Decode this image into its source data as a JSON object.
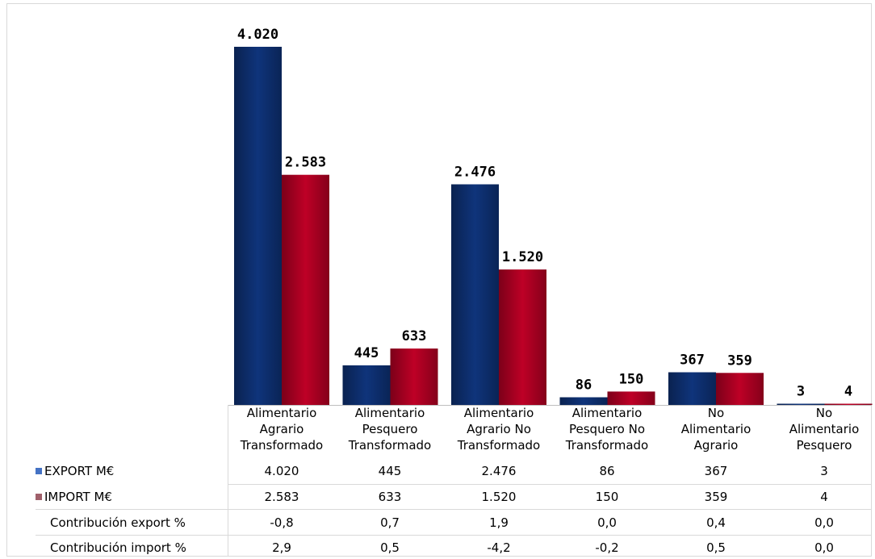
{
  "chart_data": {
    "type": "bar",
    "categories": [
      "Alimentario\nAgrario\nTransformado",
      "Alimentario\nPesquero\nTransformado",
      "Alimentario\nAgrario No\nTransformado",
      "Alimentario\nPesquero No\nTransformado",
      "No\nAlimentario\nAgrario",
      "No\nAlimentario\nPesquero"
    ],
    "series": [
      {
        "name": "EXPORT M€",
        "color": "#0d2d6b",
        "values": [
          4020,
          445,
          2476,
          86,
          367,
          3
        ],
        "labels": [
          "4.020",
          "445",
          "2.476",
          "86",
          "367",
          "3"
        ]
      },
      {
        "name": "IMPORT M€",
        "color": "#a50021",
        "values": [
          2583,
          633,
          1520,
          150,
          359,
          4
        ],
        "labels": [
          "2.583",
          "633",
          "1.520",
          "150",
          "359",
          "4"
        ]
      }
    ],
    "ylim": [
      0,
      4020
    ],
    "grid": false,
    "legend": "data-table",
    "table_rows": [
      {
        "label": "Contribución export %",
        "values": [
          "-0,8",
          "0,7",
          "1,9",
          "0,0",
          "0,4",
          "0,0"
        ]
      },
      {
        "label": "Contribución import %",
        "values": [
          "2,9",
          "0,5",
          "-4,2",
          "-0,2",
          "0,5",
          "0,0"
        ]
      }
    ]
  }
}
